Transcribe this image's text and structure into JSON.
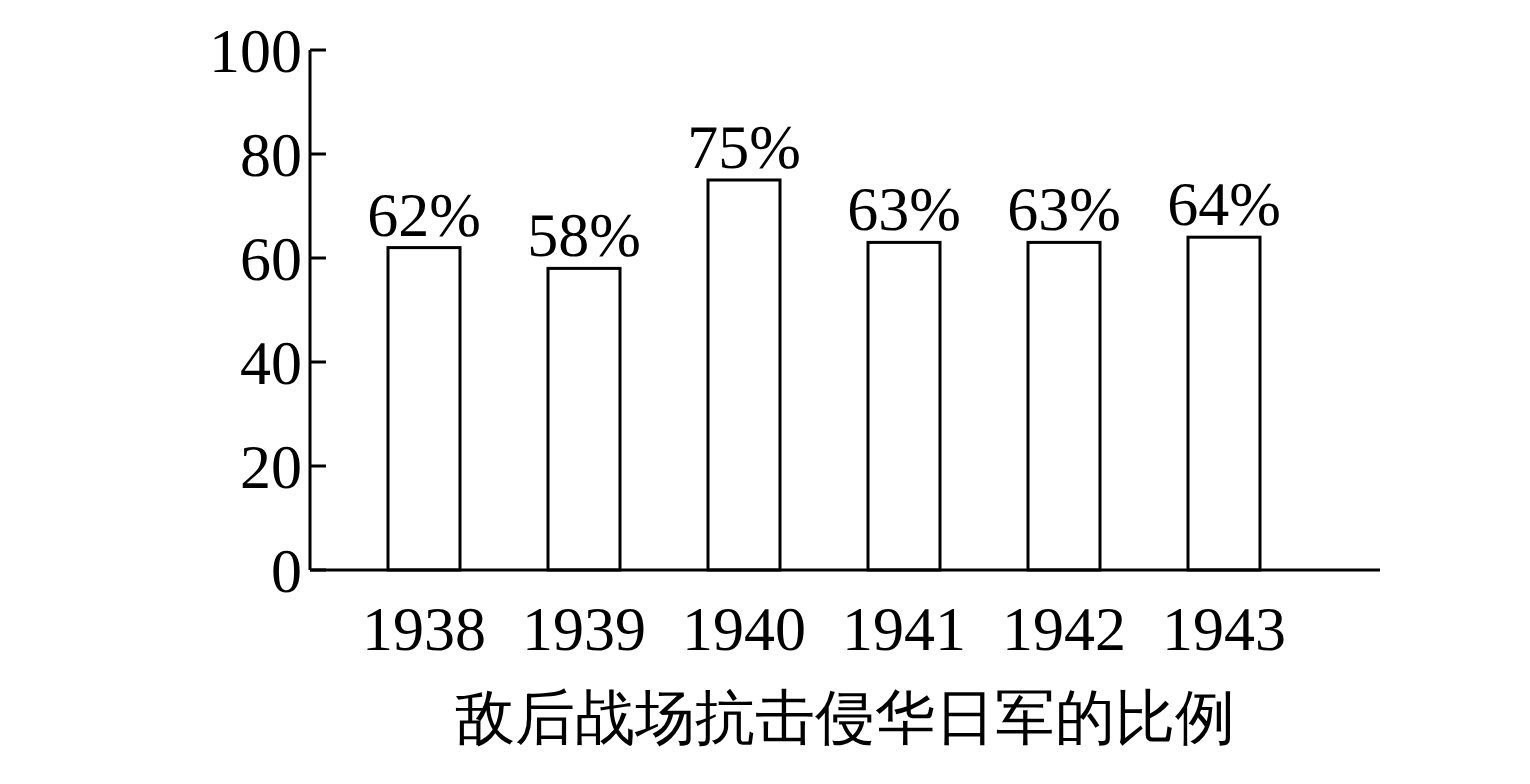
{
  "chart_data": {
    "type": "bar",
    "xlabel": "敌后战场抗击侵华日军的比例",
    "categories": [
      "1938",
      "1939",
      "1940",
      "1941",
      "1942",
      "1943"
    ],
    "values": [
      62,
      58,
      75,
      63,
      63,
      64
    ],
    "value_labels": [
      "62%",
      "58%",
      "75%",
      "63%",
      "63%",
      "64%"
    ],
    "color": "#ffffff",
    "ylim": [
      0,
      100
    ],
    "yticks": [
      0,
      20,
      40,
      60,
      80,
      100
    ],
    "grid": false
  }
}
